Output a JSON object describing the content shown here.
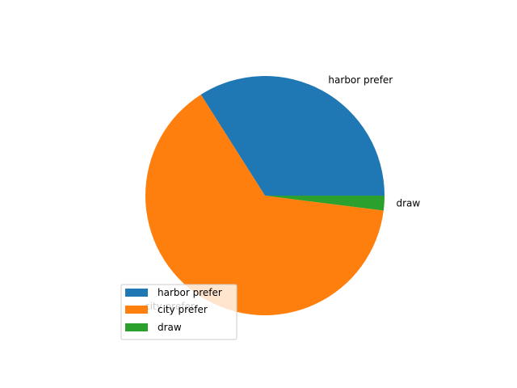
{
  "chart_data": {
    "type": "pie",
    "labels": [
      "harbor prefer",
      "city prefer",
      "draw"
    ],
    "values": [
      34,
      64,
      2
    ],
    "colors": [
      "#1f77b4",
      "#ff7f0e",
      "#2ca02c"
    ],
    "start_angle_deg": 0,
    "direction": "counterclockwise",
    "legend": {
      "placement": "lower-left",
      "entries": [
        "harbor prefer",
        "city prefer",
        "draw"
      ]
    }
  }
}
